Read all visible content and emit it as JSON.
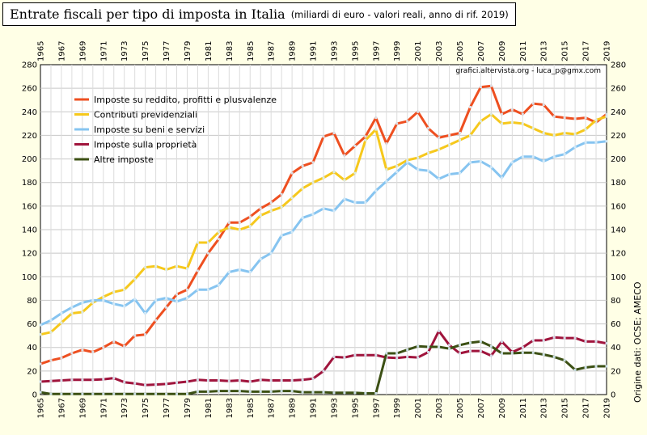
{
  "title": "Entrate fiscali per tipo di imposta in Italia",
  "subtitle": "(miliardi di euro - valori reali, anno di rif. 2019)",
  "credit": "grafici.altervista.org  -  luca_p@gmx.com",
  "source": "Origine dati: OCSE; AMECO",
  "chart_data": {
    "type": "line",
    "title": "Entrate fiscali per tipo di imposta in Italia",
    "subtitle": "(miliardi di euro - valori reali, anno di rif. 2019)",
    "xlabel": "",
    "ylabel": "",
    "xlim": [
      1965,
      2019
    ],
    "ylim": [
      0,
      280
    ],
    "y_ticks": [
      0,
      20,
      40,
      60,
      80,
      100,
      120,
      140,
      160,
      180,
      200,
      220,
      240,
      260,
      280
    ],
    "x_tick_labels": [
      "1965",
      "1967",
      "1969",
      "1971",
      "1973",
      "1975",
      "1977",
      "1979",
      "1981",
      "1983",
      "1985",
      "1987",
      "1989",
      "1991",
      "1993",
      "1995",
      "1997",
      "1999",
      "2001",
      "2003",
      "2005",
      "2007",
      "2009",
      "2011",
      "2013",
      "2015",
      "2017",
      "2019"
    ],
    "grid": true,
    "legend_position": "top-left",
    "x": [
      1965,
      1966,
      1967,
      1968,
      1969,
      1970,
      1971,
      1972,
      1973,
      1974,
      1975,
      1976,
      1977,
      1978,
      1979,
      1980,
      1981,
      1982,
      1983,
      1984,
      1985,
      1986,
      1987,
      1988,
      1989,
      1990,
      1991,
      1992,
      1993,
      1994,
      1995,
      1996,
      1997,
      1998,
      1999,
      2000,
      2001,
      2002,
      2003,
      2004,
      2005,
      2006,
      2007,
      2008,
      2009,
      2010,
      2011,
      2012,
      2013,
      2014,
      2015,
      2016,
      2017,
      2018,
      2019
    ],
    "series": [
      {
        "name": "Imposte su reddito, profitti e plusvalenze",
        "color": "#ee4f20",
        "values": [
          26,
          29,
          31,
          35,
          38,
          36,
          40,
          45,
          41,
          50,
          51,
          63,
          74,
          85,
          89,
          105,
          120,
          132,
          146,
          146,
          151,
          158,
          163,
          170,
          188,
          194,
          197,
          219,
          222,
          203,
          211,
          219,
          235,
          213,
          230,
          232,
          240,
          226,
          218,
          220,
          222,
          244,
          261,
          262,
          238,
          242,
          238,
          247,
          246,
          236,
          235,
          234,
          235,
          231,
          238
        ]
      },
      {
        "name": "Contributi previdenziali",
        "color": "#f6c81c",
        "values": [
          51,
          53,
          61,
          69,
          70,
          78,
          83,
          87,
          89,
          98,
          108,
          109,
          106,
          109,
          107,
          129,
          129,
          138,
          142,
          140,
          143,
          152,
          156,
          159,
          167,
          175,
          180,
          184,
          189,
          182,
          188,
          216,
          225,
          191,
          194,
          199,
          201,
          205,
          208,
          212,
          216,
          220,
          232,
          238,
          230,
          231,
          230,
          226,
          222,
          220,
          222,
          221,
          225,
          233,
          236
        ]
      },
      {
        "name": "Imposte su beni e servizi",
        "color": "#86c4f0",
        "values": [
          59,
          63,
          69,
          74,
          78,
          80,
          80,
          77,
          75,
          81,
          69,
          80,
          82,
          79,
          82,
          89,
          89,
          93,
          104,
          106,
          104,
          115,
          120,
          135,
          138,
          150,
          153,
          158,
          156,
          166,
          163,
          163,
          173,
          181,
          189,
          197,
          191,
          190,
          183,
          187,
          188,
          197,
          198,
          193,
          184,
          197,
          202,
          202,
          198,
          202,
          204,
          210,
          214,
          214,
          215
        ]
      },
      {
        "name": "Imposte sulla proprietà",
        "color": "#a0143c",
        "values": [
          11,
          11.5,
          12,
          12.5,
          12.5,
          12.5,
          13,
          14,
          10.5,
          9.5,
          8,
          8.5,
          9,
          10,
          11,
          12.5,
          12,
          12,
          11.5,
          12,
          11,
          12.5,
          12,
          12,
          12,
          12.5,
          13.5,
          20,
          32,
          31.5,
          33.5,
          33.5,
          33.5,
          31.5,
          31,
          32,
          31.5,
          36,
          54,
          42,
          35,
          37,
          37,
          33,
          45,
          36,
          40,
          46,
          46,
          48.5,
          48,
          48,
          45,
          45,
          43.5
        ]
      },
      {
        "name": "Altre imposte",
        "color": "#3c5014",
        "values": [
          2,
          0.5,
          0.5,
          0.5,
          0.5,
          0.5,
          0.5,
          0.5,
          0.5,
          0.5,
          0.5,
          0.5,
          0.5,
          0.5,
          0.5,
          2.5,
          2.5,
          3,
          3,
          3,
          2.5,
          2.5,
          2.5,
          3,
          3,
          2,
          2,
          2,
          1.5,
          1.5,
          1.5,
          1,
          1,
          35,
          35,
          38,
          41,
          40.5,
          40.5,
          39,
          42,
          44,
          45,
          41,
          35,
          35,
          35.5,
          35.5,
          34,
          32,
          29,
          21,
          23,
          24,
          24
        ]
      }
    ]
  }
}
